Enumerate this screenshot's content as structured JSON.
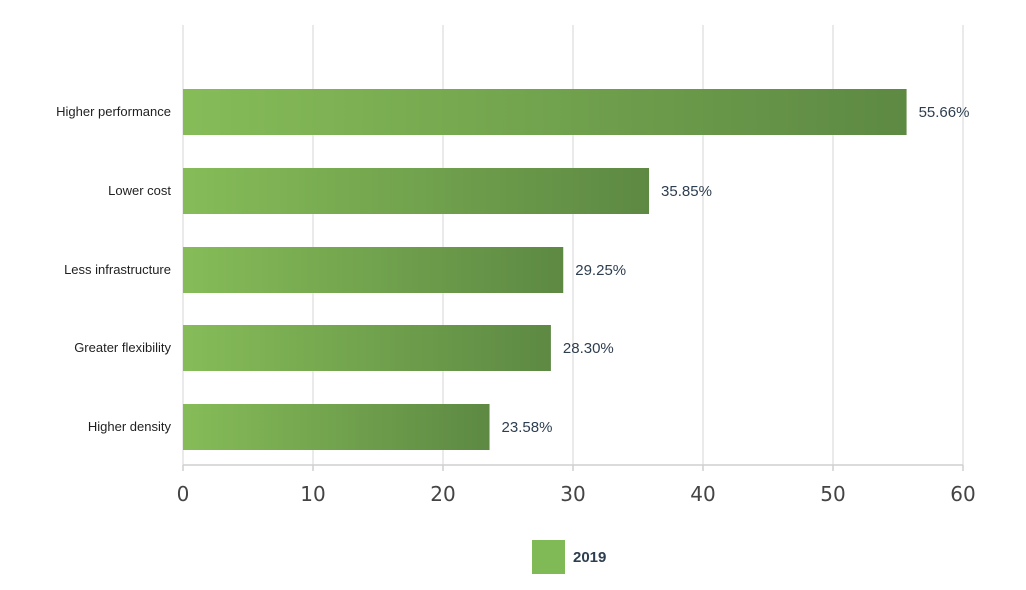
{
  "chart_data": {
    "type": "bar",
    "orientation": "horizontal",
    "title": "",
    "xlabel": "",
    "ylabel": "",
    "xlim": [
      0,
      60
    ],
    "x_ticks": [
      0,
      10,
      20,
      30,
      40,
      50,
      60
    ],
    "grid": true,
    "legend_position": "bottom",
    "categories": [
      "Higher performance",
      "Lower cost",
      "Less infrastructure",
      "Greater flexibility",
      "Higher density"
    ],
    "series": [
      {
        "name": "2019",
        "values": [
          55.66,
          35.85,
          29.25,
          28.3,
          23.58
        ],
        "labels": [
          "55.66%",
          "35.85%",
          "29.25%",
          "28.30%",
          "23.58%"
        ]
      }
    ]
  },
  "colors": {
    "bar_start": "#86bc58",
    "bar_end": "#5d8943",
    "legend_swatch": "#7fba56",
    "grid": "#e3e3e3",
    "axis": "#cfcfcf"
  }
}
